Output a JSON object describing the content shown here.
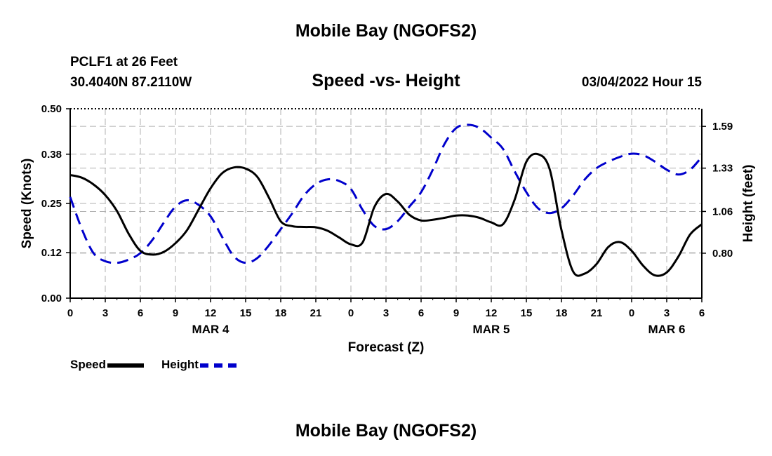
{
  "title": "Mobile Bay (NGOFS2)",
  "title_bottom": "Mobile Bay (NGOFS2)",
  "station": "PCLF1 at 26 Feet",
  "coords": "30.4040N  87.2110W",
  "subtitle": "Speed -vs- Height",
  "datetime": "03/04/2022 Hour 15",
  "chart_data": {
    "type": "line",
    "title": "Speed -vs- Height",
    "xlabel": "Forecast (Z)",
    "ylabel": "Speed (Knots)",
    "y2label": "Height (feet)",
    "xlim": [
      0,
      54
    ],
    "ylim": [
      0,
      0.5
    ],
    "y2lim": [
      0.52,
      1.7
    ],
    "x_ticks": [
      0,
      3,
      6,
      9,
      12,
      15,
      18,
      21,
      24,
      27,
      30,
      33,
      36,
      39,
      42,
      45,
      48,
      51,
      54
    ],
    "x_tick_labels": [
      "0",
      "3",
      "6",
      "9",
      "12",
      "15",
      "18",
      "21",
      "0",
      "3",
      "6",
      "9",
      "12",
      "15",
      "18",
      "21",
      "0",
      "3",
      "6"
    ],
    "date_labels": [
      {
        "x": 12,
        "label": "MAR 4"
      },
      {
        "x": 36,
        "label": "MAR 5"
      },
      {
        "x": 51,
        "label": "MAR 6"
      }
    ],
    "y_ticks": [
      0.0,
      0.12,
      0.25,
      0.38,
      0.5
    ],
    "y_tick_labels": [
      "0.00",
      "0.12",
      "0.25",
      "0.38",
      "0.50"
    ],
    "y2_ticks": [
      0.8,
      1.06,
      1.33,
      1.59
    ],
    "y2_tick_labels": [
      "0.80",
      "1.06",
      "1.33",
      "1.59"
    ],
    "grid": true,
    "series": [
      {
        "name": "Speed",
        "axis": "left",
        "color": "#000000",
        "style": "solid",
        "x": [
          0,
          1,
          2,
          3,
          4,
          5,
          6,
          7,
          8,
          9,
          10,
          11,
          12,
          13,
          14,
          15,
          16,
          17,
          18,
          19,
          20,
          21,
          22,
          23,
          24,
          25,
          26,
          27,
          28,
          29,
          30,
          31,
          32,
          33,
          34,
          35,
          36,
          37,
          38,
          39,
          40,
          41,
          42,
          43,
          44,
          45,
          46,
          47,
          48,
          49,
          50,
          51,
          52,
          53,
          54
        ],
        "values": [
          0.325,
          0.318,
          0.3,
          0.272,
          0.23,
          0.17,
          0.125,
          0.115,
          0.122,
          0.145,
          0.18,
          0.235,
          0.29,
          0.33,
          0.345,
          0.342,
          0.32,
          0.265,
          0.203,
          0.19,
          0.188,
          0.187,
          0.178,
          0.16,
          0.142,
          0.147,
          0.24,
          0.275,
          0.255,
          0.22,
          0.205,
          0.207,
          0.212,
          0.218,
          0.218,
          0.212,
          0.2,
          0.195,
          0.26,
          0.36,
          0.38,
          0.34,
          0.18,
          0.07,
          0.065,
          0.09,
          0.135,
          0.148,
          0.125,
          0.085,
          0.06,
          0.068,
          0.11,
          0.168,
          0.195
        ]
      },
      {
        "name": "Height",
        "axis": "right",
        "color": "#0000cc",
        "style": "dashed",
        "x": [
          0,
          1,
          2,
          3,
          4,
          5,
          6,
          7,
          8,
          9,
          10,
          11,
          12,
          13,
          14,
          15,
          16,
          17,
          18,
          19,
          20,
          21,
          22,
          23,
          24,
          25,
          26,
          27,
          28,
          29,
          30,
          31,
          32,
          33,
          34,
          35,
          36,
          37,
          38,
          39,
          40,
          41,
          42,
          43,
          44,
          45,
          46,
          47,
          48,
          49,
          50,
          51,
          52,
          53,
          54
        ],
        "values": [
          1.15,
          0.95,
          0.8,
          0.75,
          0.74,
          0.76,
          0.8,
          0.88,
          0.99,
          1.09,
          1.13,
          1.1,
          1.03,
          0.9,
          0.78,
          0.74,
          0.77,
          0.85,
          0.95,
          1.05,
          1.16,
          1.23,
          1.26,
          1.25,
          1.2,
          1.07,
          0.97,
          0.95,
          1.0,
          1.09,
          1.18,
          1.32,
          1.48,
          1.58,
          1.6,
          1.58,
          1.52,
          1.45,
          1.31,
          1.18,
          1.08,
          1.05,
          1.08,
          1.16,
          1.26,
          1.33,
          1.37,
          1.4,
          1.42,
          1.41,
          1.37,
          1.32,
          1.29,
          1.32,
          1.4
        ]
      }
    ]
  },
  "legend": [
    {
      "label": "Speed",
      "color": "#000000",
      "style": "solid"
    },
    {
      "label": "Height",
      "color": "#0000cc",
      "style": "dashed"
    }
  ]
}
